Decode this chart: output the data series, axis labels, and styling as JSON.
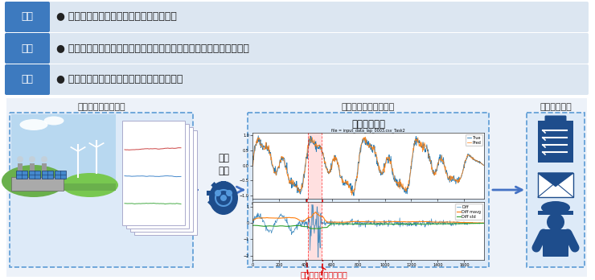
{
  "title_rows": [
    {
      "label": "課題",
      "text": "● 設備機器の突然の故障による損失の回避"
    },
    {
      "label": "対策",
      "text": "● センサーデータを監視し異常の予兆を検知し、計画停止・保全する"
    },
    {
      "label": "技術",
      "text": "● 機械学習（時系列予測）を用いたシステム"
    }
  ],
  "label_bg": "#3d7abf",
  "row_bg": "#dce6f1",
  "label_text_color": "#ffffff",
  "row_text_color": "#222222",
  "bottom_bg": "#edf2f9",
  "section_border": "#7aafda",
  "section1_title": "センサー計測データ",
  "section2_title": "異常予兆検知システム",
  "section3_title": "担当者へ通知",
  "ml_label": "機械\n学習",
  "anomaly_title": "異常度を算出",
  "anomaly_subtitle": "file = input_data_lap_0003.csv_Task2",
  "anomaly_label": "異常の予兆を自動検知",
  "arrow_color": "#4472c4",
  "dashed_border_color": "#5b9bd5",
  "annotation_color": "#e00000",
  "chart1_true_color": "#1f77b4",
  "chart1_pred_color": "#ff7f0e",
  "chart2_diff_color": "#1f77b4",
  "chart2_mavg_color": "#ff7f0e",
  "chart2_std_color": "#2ca02c",
  "background_color": "#ffffff"
}
